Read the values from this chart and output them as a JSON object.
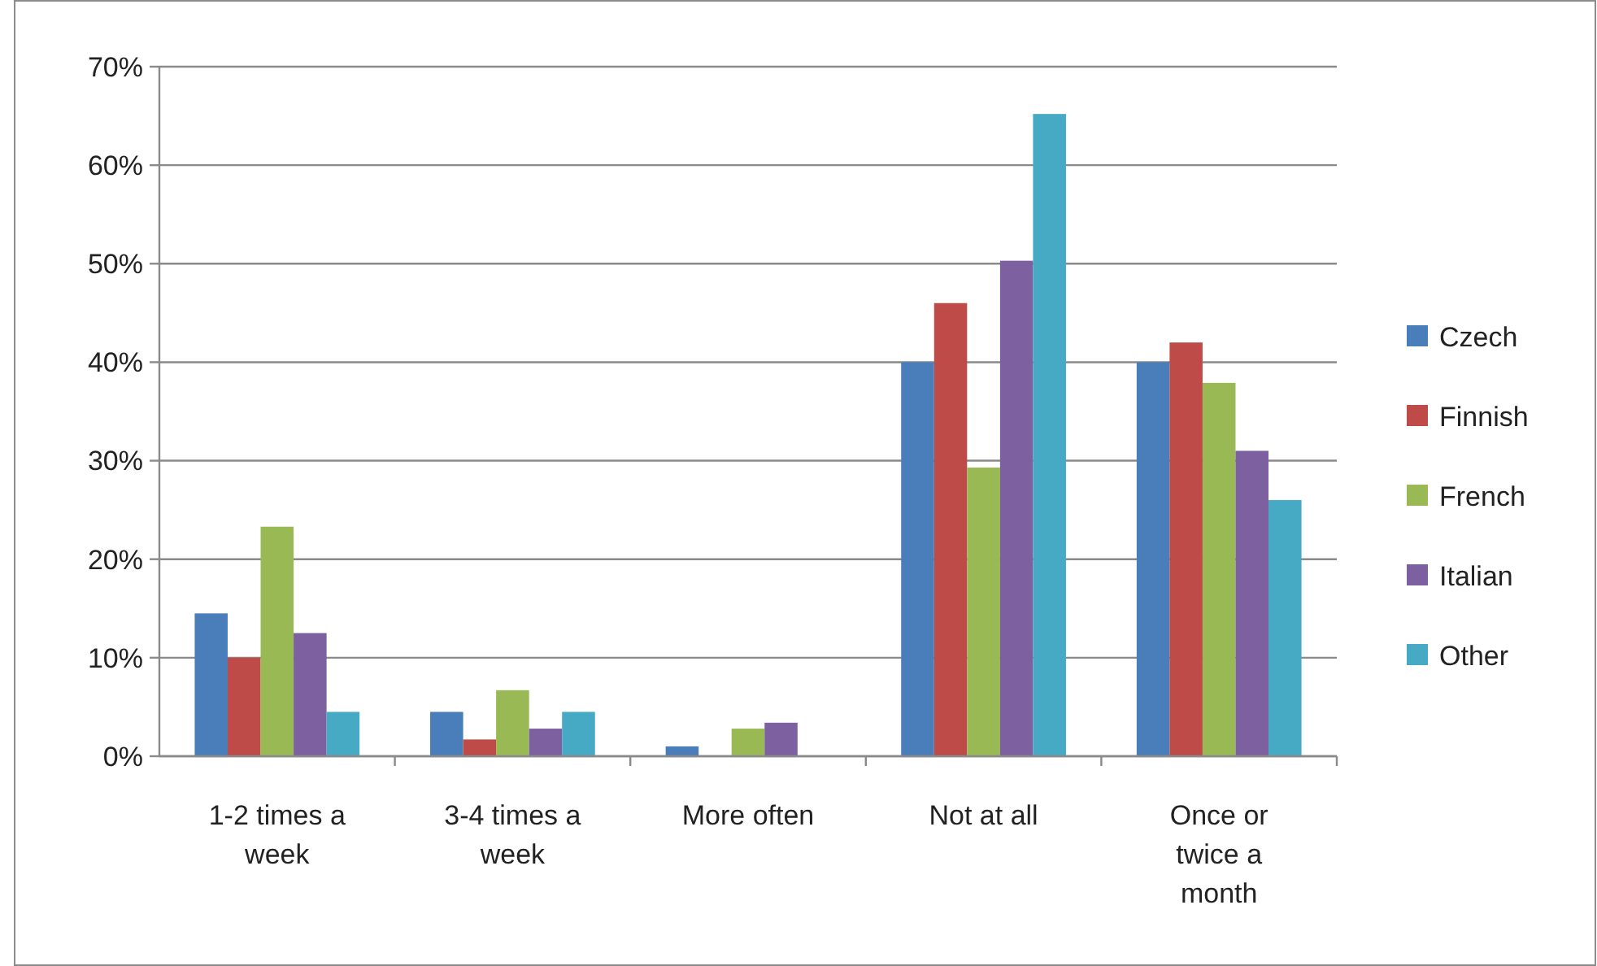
{
  "chart_data": {
    "type": "bar",
    "categories": [
      "1-2 times a week",
      "3-4 times a week",
      "More often",
      "Not at all",
      "Once or twice a month"
    ],
    "series": [
      {
        "name": "Czech",
        "color": "#4a7ebb",
        "values": [
          14.5,
          4.5,
          1,
          40,
          40
        ]
      },
      {
        "name": "Finnish",
        "color": "#be4b48",
        "values": [
          10,
          1.7,
          0,
          46,
          42
        ]
      },
      {
        "name": "French",
        "color": "#98b954",
        "values": [
          23.3,
          6.7,
          2.8,
          29.3,
          37.9
        ]
      },
      {
        "name": "Italian",
        "color": "#7d60a0",
        "values": [
          12.5,
          2.8,
          3.4,
          50.3,
          31
        ]
      },
      {
        "name": "Other",
        "color": "#46aac5",
        "values": [
          4.5,
          4.5,
          0,
          65.2,
          26
        ]
      }
    ],
    "ylim": [
      0,
      70
    ],
    "yticks": [
      {
        "value": 0,
        "label": "0%"
      },
      {
        "value": 10,
        "label": "10%"
      },
      {
        "value": 20,
        "label": "20%"
      },
      {
        "value": 30,
        "label": "30%"
      },
      {
        "value": 40,
        "label": "40%"
      },
      {
        "value": 50,
        "label": "50%"
      },
      {
        "value": 60,
        "label": "60%"
      },
      {
        "value": 70,
        "label": "70%"
      }
    ],
    "grid": "y",
    "legend": "right"
  }
}
